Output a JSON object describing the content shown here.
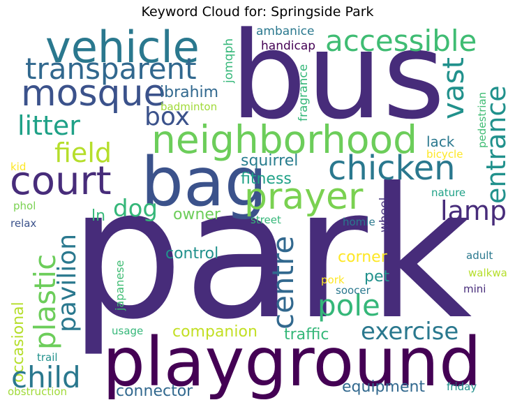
{
  "title": "Keyword Cloud for: Springside Park",
  "words": {
    "park": "park",
    "bus": "bus",
    "playground": "playground",
    "bag": "bag",
    "neighborhood": "neighborhood",
    "vehicle": "vehicle",
    "mosque": "mosque",
    "transparent": "transparent",
    "chicken": "chicken",
    "court": "court",
    "prayer": "prayer",
    "accessible": "accessible",
    "entrance": "entrance",
    "vast": "vast",
    "centre": "centre",
    "plastic": "plastic",
    "pavilion": "pavilion",
    "child": "child",
    "exercise": "exercise",
    "pole": "pole",
    "lamp": "lamp",
    "dog": "dog",
    "field": "field",
    "litter": "litter",
    "box": "box",
    "ibrahim": "ibrahim",
    "connector": "connector",
    "companion": "companion",
    "equipment": "equipment",
    "fitness": "fitness",
    "squirrel": "squirrel",
    "corner": "corner",
    "control": "control",
    "owner": "owner",
    "pet": "pet",
    "traffic": "traffic",
    "occasional": "occasional",
    "lack": "lack",
    "handicap": "handicap",
    "ambanice": "ambanice",
    "badminton": "badminton",
    "fragrance": "fragrance",
    "jomqph": "jomqph",
    "pedestrian": "pedestrian",
    "bicycle": "bicycle",
    "nature": "nature",
    "adult": "adult",
    "walkway": "walkway",
    "mini": "mini",
    "soocer": "soocer",
    "pork": "pork",
    "street": "street",
    "homie": "homie",
    "wheel": "wheel",
    "japanese": "japanese",
    "usage": "usage",
    "trail": "trail",
    "obstruction": "obstruction",
    "friday": "friday",
    "relax": "relax",
    "phol": "phol",
    "kid": "kid",
    "ln": "ln"
  }
}
